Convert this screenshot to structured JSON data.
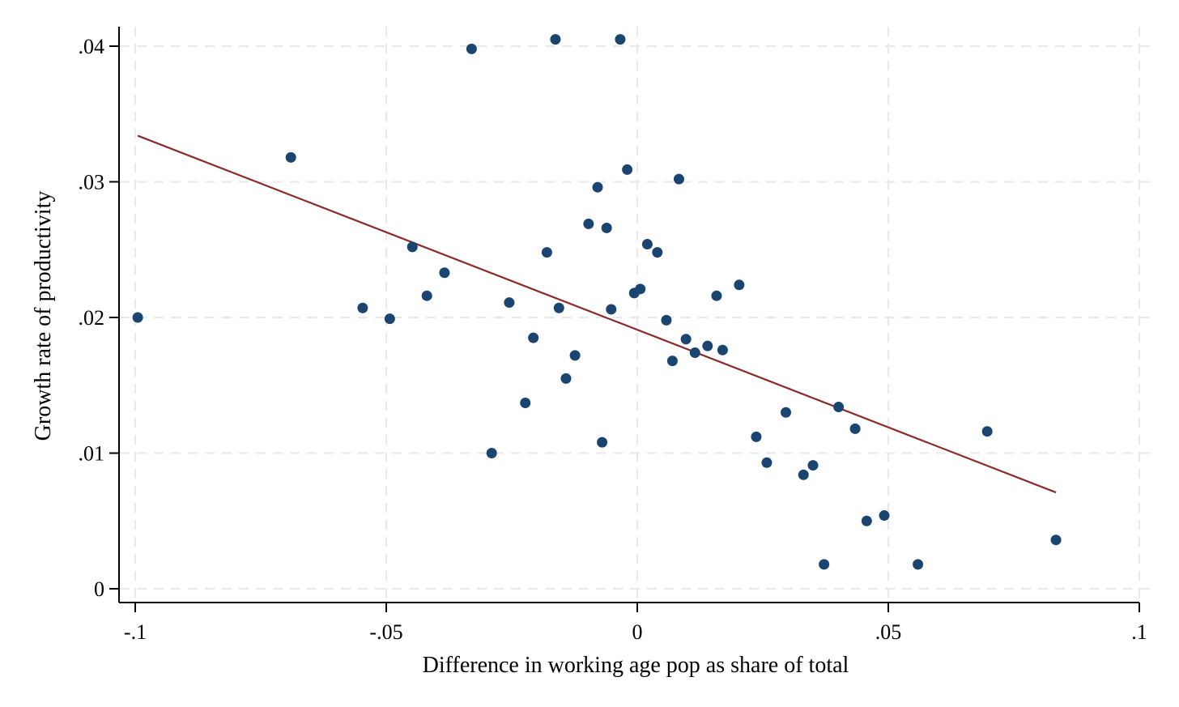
{
  "chart_data": {
    "type": "scatter",
    "title": "",
    "xlabel": "Difference in working age pop as share of total",
    "ylabel": "Growth rate of productivity",
    "xlim": [
      -0.1,
      0.1
    ],
    "ylim": [
      0,
      0.04
    ],
    "x_ticks": [
      {
        "value": -0.1,
        "label": "-.1"
      },
      {
        "value": -0.05,
        "label": "-.05"
      },
      {
        "value": 0,
        "label": "0"
      },
      {
        "value": 0.05,
        "label": ".05"
      },
      {
        "value": 0.1,
        "label": ".1"
      }
    ],
    "y_ticks": [
      {
        "value": 0,
        "label": "0"
      },
      {
        "value": 0.01,
        "label": ".01"
      },
      {
        "value": 0.02,
        "label": ".02"
      },
      {
        "value": 0.03,
        "label": ".03"
      },
      {
        "value": 0.04,
        "label": ".04"
      }
    ],
    "grid": true,
    "legend": "none",
    "colors": {
      "points": "#1a4570",
      "fit_line": "#8b2a2a",
      "grid": "#e9e9e9",
      "axis": "#000000"
    },
    "series": [
      {
        "kind": "scatter",
        "points": [
          {
            "x": -0.0995,
            "y": 0.02
          },
          {
            "x": -0.069,
            "y": 0.0318
          },
          {
            "x": -0.0547,
            "y": 0.0207
          },
          {
            "x": -0.0493,
            "y": 0.0199
          },
          {
            "x": -0.0448,
            "y": 0.0252
          },
          {
            "x": -0.0419,
            "y": 0.0216
          },
          {
            "x": -0.0384,
            "y": 0.0233
          },
          {
            "x": -0.033,
            "y": 0.0398
          },
          {
            "x": -0.029,
            "y": 0.01
          },
          {
            "x": -0.0255,
            "y": 0.0211
          },
          {
            "x": -0.0223,
            "y": 0.0137
          },
          {
            "x": -0.0207,
            "y": 0.0185
          },
          {
            "x": -0.018,
            "y": 0.0248
          },
          {
            "x": -0.0163,
            "y": 0.0405
          },
          {
            "x": -0.0156,
            "y": 0.0207
          },
          {
            "x": -0.0142,
            "y": 0.0155
          },
          {
            "x": -0.0124,
            "y": 0.0172
          },
          {
            "x": -0.0097,
            "y": 0.0269
          },
          {
            "x": -0.0079,
            "y": 0.0296
          },
          {
            "x": -0.007,
            "y": 0.0108
          },
          {
            "x": -0.0061,
            "y": 0.0266
          },
          {
            "x": -0.0052,
            "y": 0.0206
          },
          {
            "x": -0.0034,
            "y": 0.0405
          },
          {
            "x": -0.002,
            "y": 0.0309
          },
          {
            "x": -0.0006,
            "y": 0.0218
          },
          {
            "x": 0.0006,
            "y": 0.0221
          },
          {
            "x": 0.002,
            "y": 0.0254
          },
          {
            "x": 0.004,
            "y": 0.0248
          },
          {
            "x": 0.0058,
            "y": 0.0198
          },
          {
            "x": 0.007,
            "y": 0.0168
          },
          {
            "x": 0.0083,
            "y": 0.0302
          },
          {
            "x": 0.0097,
            "y": 0.0184
          },
          {
            "x": 0.0115,
            "y": 0.0174
          },
          {
            "x": 0.014,
            "y": 0.0179
          },
          {
            "x": 0.0158,
            "y": 0.0216
          },
          {
            "x": 0.017,
            "y": 0.0176
          },
          {
            "x": 0.0203,
            "y": 0.0224
          },
          {
            "x": 0.0237,
            "y": 0.0112
          },
          {
            "x": 0.0258,
            "y": 0.0093
          },
          {
            "x": 0.0296,
            "y": 0.013
          },
          {
            "x": 0.0331,
            "y": 0.0084
          },
          {
            "x": 0.035,
            "y": 0.0091
          },
          {
            "x": 0.0372,
            "y": 0.0018
          },
          {
            "x": 0.0401,
            "y": 0.0134
          },
          {
            "x": 0.0434,
            "y": 0.0118
          },
          {
            "x": 0.0457,
            "y": 0.005
          },
          {
            "x": 0.0492,
            "y": 0.0054
          },
          {
            "x": 0.0559,
            "y": 0.0018
          },
          {
            "x": 0.0697,
            "y": 0.0116
          },
          {
            "x": 0.0834,
            "y": 0.0036
          }
        ]
      },
      {
        "kind": "line",
        "points": [
          {
            "x": -0.0995,
            "y": 0.0334
          },
          {
            "x": 0.0834,
            "y": 0.0071
          }
        ]
      }
    ]
  }
}
